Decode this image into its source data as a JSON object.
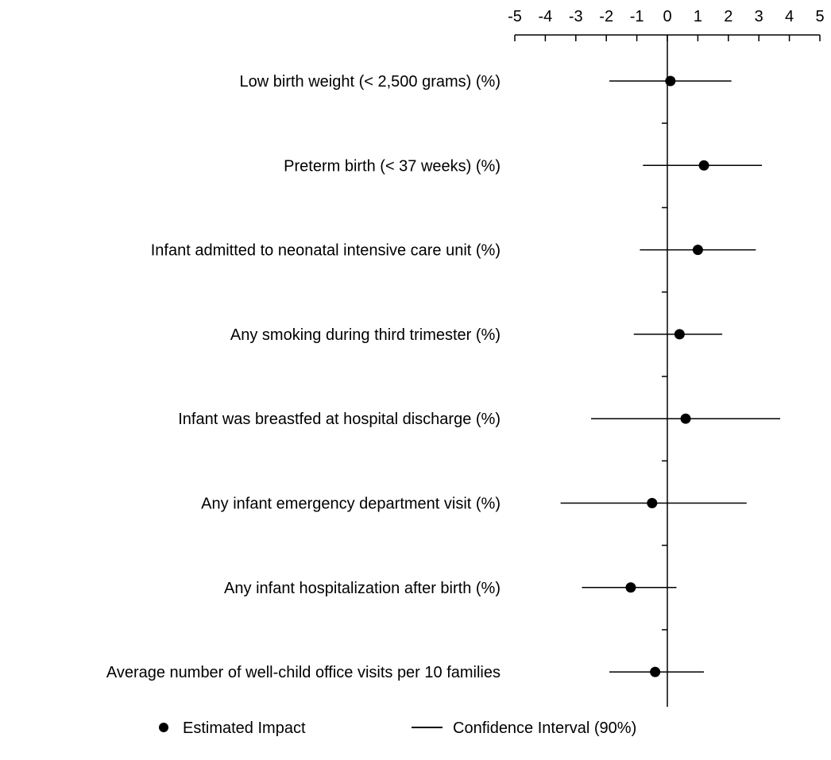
{
  "chart_data": {
    "type": "scatter",
    "title": "",
    "xlabel": "",
    "ylabel": "",
    "xlim": [
      -5,
      5
    ],
    "x_ticks": [
      "-5",
      "-4",
      "-3",
      "-2",
      "-1",
      "0",
      "1",
      "2",
      "3",
      "4",
      "5"
    ],
    "x_axis_position": "top",
    "grid": false,
    "legend_position": "bottom",
    "categories": [
      "Low birth weight (< 2,500 grams) (%)",
      "Preterm birth (< 37 weeks) (%)",
      "Infant admitted to neonatal intensive care unit (%)",
      "Any smoking during third trimester (%)",
      "Infant was breastfed at hospital discharge (%)",
      "Any infant emergency department visit (%)",
      "Any infant hospitalization after birth (%)",
      "Average number of well-child office visits per 10 families"
    ],
    "series": [
      {
        "name": "Estimated Impact",
        "marker": "dot",
        "color": "#000000",
        "values": [
          0.1,
          1.2,
          1.0,
          0.4,
          0.6,
          -0.5,
          -1.2,
          -0.4
        ]
      },
      {
        "name": "Confidence Interval (90%)",
        "marker": "line",
        "color": "#000000",
        "lower": [
          -1.9,
          -0.8,
          -0.9,
          -1.1,
          -2.5,
          -3.5,
          -2.8,
          -1.9
        ],
        "upper": [
          2.1,
          3.1,
          2.9,
          1.8,
          3.7,
          2.6,
          0.3,
          1.2
        ]
      }
    ]
  }
}
